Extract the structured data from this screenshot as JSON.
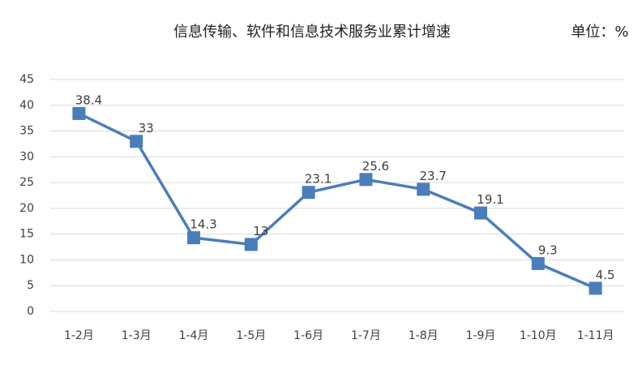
{
  "chart_data": {
    "type": "line",
    "title": "信息传输、软件和信息技术服务业累计增速",
    "unit": "单位：%",
    "categories": [
      "1-2月",
      "1-3月",
      "1-4月",
      "1-5月",
      "1-6月",
      "1-7月",
      "1-8月",
      "1-9月",
      "1-10月",
      "1-11月"
    ],
    "values": [
      38.4,
      33,
      14.3,
      13,
      23.1,
      25.6,
      23.7,
      19.1,
      9.3,
      4.5
    ],
    "color": "#4a7ebb",
    "ylim": [
      0,
      45
    ],
    "yticks": [
      0,
      5,
      10,
      15,
      20,
      25,
      30,
      35,
      40,
      45
    ],
    "grid": true
  }
}
